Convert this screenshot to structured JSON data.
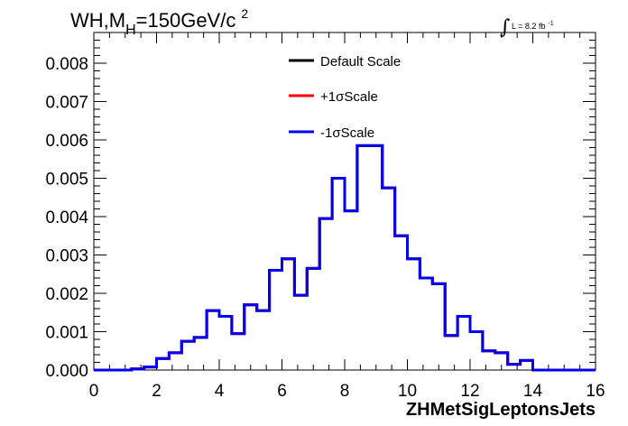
{
  "chart_data": {
    "type": "line",
    "title_main": "WH,M",
    "title_sub": "H",
    "title_rest": "=150GeV/c",
    "title_sup": "2",
    "lumi_main": "L = 8.2 fb",
    "lumi_sup": "-1",
    "xlabel": "ZHMetSigLeptonsJets",
    "ylabel": "",
    "xlim": [
      0,
      16
    ],
    "ylim": [
      0,
      0.0088
    ],
    "x_ticks": [
      "0",
      "2",
      "4",
      "6",
      "8",
      "10",
      "12",
      "14",
      "16"
    ],
    "y_ticks": [
      "0.000",
      "0.001",
      "0.002",
      "0.003",
      "0.004",
      "0.005",
      "0.006",
      "0.007",
      "0.008"
    ],
    "legend_position": "top-center",
    "bin_edges": [
      0,
      0.4,
      0.8,
      1.2,
      1.6,
      2.0,
      2.4,
      2.8,
      3.2,
      3.6,
      4.0,
      4.4,
      4.8,
      5.2,
      5.6,
      6.0,
      6.4,
      6.8,
      7.2,
      7.6,
      8.0,
      8.4,
      8.8,
      9.2,
      9.6,
      10.0,
      10.4,
      10.8,
      11.2,
      11.6,
      12.0,
      12.4,
      12.8,
      13.2,
      13.6,
      14.0,
      14.4,
      14.8,
      15.2,
      15.6,
      16.0
    ],
    "series": [
      {
        "name": "Default Scale",
        "color": "#000000",
        "values": [
          0,
          0,
          0,
          3e-05,
          8e-05,
          0.0003,
          0.00045,
          0.00075,
          0.00085,
          0.00155,
          0.0014,
          0.00095,
          0.0017,
          0.00155,
          0.0026,
          0.0029,
          0.00195,
          0.00265,
          0.00395,
          0.005,
          0.00415,
          0.00585,
          0.00585,
          0.00475,
          0.0035,
          0.0029,
          0.0024,
          0.00225,
          0.0009,
          0.0014,
          0.001,
          0.0005,
          0.00045,
          0.00015,
          0.00025,
          0,
          0,
          0,
          0,
          0
        ]
      },
      {
        "name": "+1σScale",
        "color": "#ff0000",
        "values": [
          0,
          0,
          0,
          3e-05,
          8e-05,
          0.0003,
          0.00045,
          0.00075,
          0.00085,
          0.00155,
          0.0014,
          0.00095,
          0.0017,
          0.00155,
          0.0026,
          0.0029,
          0.00195,
          0.00265,
          0.00395,
          0.005,
          0.00415,
          0.00585,
          0.00585,
          0.00475,
          0.0035,
          0.0029,
          0.0024,
          0.00225,
          0.0009,
          0.0014,
          0.001,
          0.0005,
          0.00045,
          0.00015,
          0.00025,
          0,
          0,
          0,
          0,
          0
        ]
      },
      {
        "name": "-1σScale",
        "color": "#0000ee",
        "values": [
          0,
          0,
          0,
          3e-05,
          8e-05,
          0.0003,
          0.00045,
          0.00075,
          0.00085,
          0.00155,
          0.0014,
          0.00095,
          0.0017,
          0.00155,
          0.0026,
          0.0029,
          0.00195,
          0.00265,
          0.00395,
          0.005,
          0.00415,
          0.00585,
          0.00585,
          0.00475,
          0.0035,
          0.0029,
          0.0024,
          0.00225,
          0.0009,
          0.0014,
          0.001,
          0.0005,
          0.00045,
          0.00015,
          0.00025,
          0,
          0,
          0,
          0,
          0
        ]
      }
    ]
  }
}
